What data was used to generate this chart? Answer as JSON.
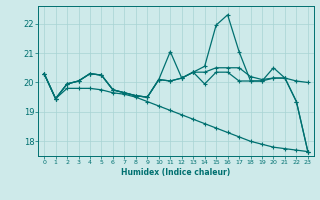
{
  "bg_color": "#ceeaea",
  "grid_color": "#a8d4d4",
  "line_color": "#007070",
  "xlabel": "Humidex (Indice chaleur)",
  "xlim": [
    -0.5,
    23.5
  ],
  "ylim": [
    17.5,
    22.6
  ],
  "yticks": [
    18,
    19,
    20,
    21,
    22
  ],
  "xticks": [
    0,
    1,
    2,
    3,
    4,
    5,
    6,
    7,
    8,
    9,
    10,
    11,
    12,
    13,
    14,
    15,
    16,
    17,
    18,
    19,
    20,
    21,
    22,
    23
  ],
  "line1_x": [
    0,
    1,
    2,
    3,
    4,
    5,
    6,
    7,
    8,
    9,
    10,
    11,
    12,
    13,
    14,
    15,
    16,
    17,
    18,
    19,
    20,
    21,
    22,
    23
  ],
  "line1_y": [
    20.3,
    19.45,
    19.95,
    20.05,
    20.3,
    20.25,
    19.75,
    19.65,
    19.55,
    19.5,
    20.1,
    21.05,
    20.15,
    20.35,
    19.95,
    20.35,
    20.35,
    20.05,
    20.05,
    20.05,
    20.5,
    20.15,
    19.35,
    17.65
  ],
  "line2_x": [
    0,
    1,
    2,
    3,
    4,
    5,
    6,
    7,
    8,
    9,
    10,
    11,
    12,
    13,
    14,
    15,
    16,
    17,
    18,
    19,
    20,
    21,
    22,
    23
  ],
  "line2_y": [
    20.3,
    19.45,
    19.95,
    20.05,
    20.3,
    20.25,
    19.75,
    19.65,
    19.55,
    19.5,
    20.1,
    20.05,
    20.15,
    20.35,
    20.55,
    21.95,
    22.3,
    21.05,
    20.05,
    20.05,
    20.15,
    20.15,
    19.35,
    17.65
  ],
  "line3_x": [
    0,
    1,
    2,
    3,
    4,
    5,
    6,
    7,
    8,
    9,
    10,
    11,
    12,
    13,
    14,
    15,
    16,
    17,
    18,
    19,
    20,
    21,
    22,
    23
  ],
  "line3_y": [
    20.3,
    19.45,
    19.95,
    20.05,
    20.3,
    20.25,
    19.75,
    19.65,
    19.55,
    19.5,
    20.1,
    20.05,
    20.15,
    20.35,
    20.35,
    20.5,
    20.5,
    20.5,
    20.2,
    20.1,
    20.15,
    20.15,
    20.05,
    20.0
  ],
  "line4_x": [
    0,
    1,
    2,
    3,
    4,
    5,
    6,
    7,
    8,
    9,
    10,
    11,
    12,
    13,
    14,
    15,
    16,
    17,
    18,
    19,
    20,
    21,
    22,
    23
  ],
  "line4_y": [
    20.3,
    19.45,
    19.8,
    19.8,
    19.8,
    19.75,
    19.65,
    19.6,
    19.5,
    19.35,
    19.2,
    19.05,
    18.9,
    18.75,
    18.6,
    18.45,
    18.3,
    18.15,
    18.0,
    17.9,
    17.8,
    17.75,
    17.7,
    17.65
  ]
}
